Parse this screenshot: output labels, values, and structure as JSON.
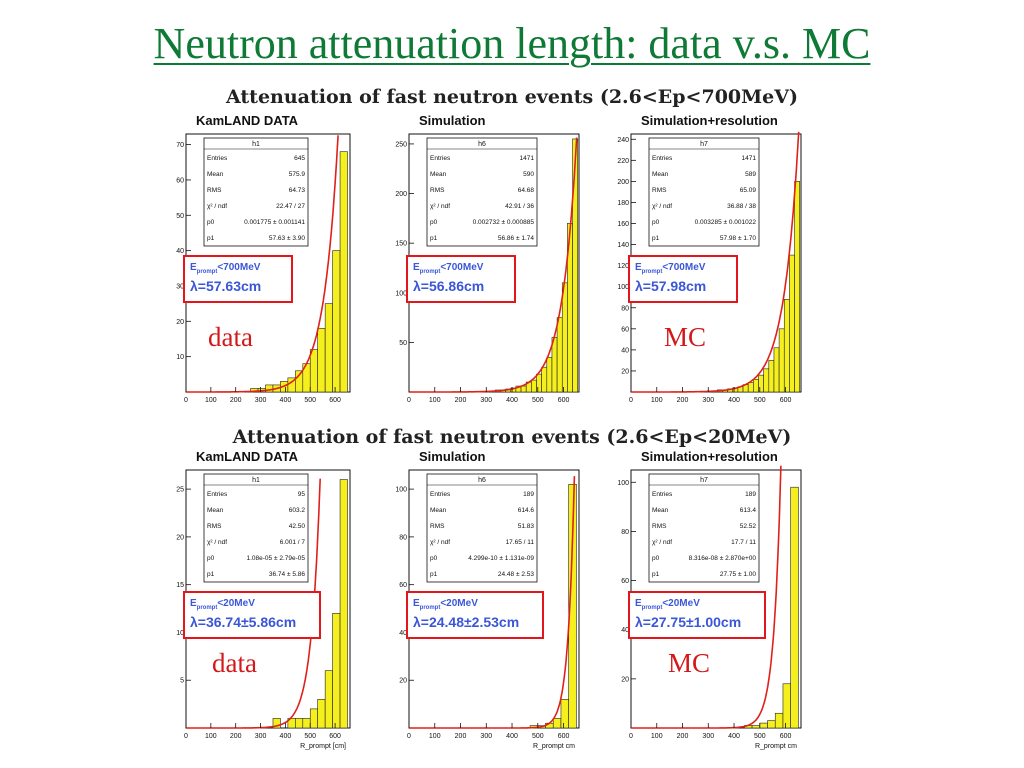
{
  "slide": {
    "title": "Neutron attenuation length: data v.s. MC",
    "section1_title": "Attenuation of fast neutron events (2.6<Ep<700MeV)",
    "section2_title": "Attenuation of fast neutron events (2.6<Ep<20MeV)",
    "labels": {
      "r1_left": "data",
      "r1_right": "MC",
      "r2_left": "data",
      "r2_right": "MC"
    }
  },
  "colors": {
    "title": "#0f7a36",
    "label": "#d21a1a",
    "fill": "#f5ef1e",
    "fit": "#e0201a",
    "fit_text": "#3b56d8",
    "box": "#e3161b"
  },
  "chart_data": [
    {
      "type": "bar",
      "title": "KamLAND DATA",
      "hist": "h1",
      "xticks": [
        "0",
        "100",
        "200",
        "300",
        "400",
        "500",
        "600"
      ],
      "xlim": [
        0,
        660
      ],
      "yticks": [
        "10",
        "20",
        "30",
        "40",
        "50",
        "60",
        "70"
      ],
      "ylim": [
        0,
        73
      ],
      "xlabel": "",
      "stats": [
        [
          "Entries",
          "645"
        ],
        [
          "Mean",
          "575.9"
        ],
        [
          "RMS",
          "64.73"
        ],
        [
          "χ² / ndf",
          "22.47 / 27"
        ],
        [
          "p0",
          "0.001775 ± 0.001141"
        ],
        [
          "p1",
          "57.63 ± 3.90"
        ]
      ],
      "fit_sub": "<700MeV",
      "fit_lambda": "λ=57.63cm",
      "bins_x": [
        5,
        35,
        65,
        95,
        125,
        155,
        185,
        215,
        245,
        275,
        305,
        335,
        365,
        395,
        425,
        455,
        485,
        515,
        545,
        575,
        605,
        635
      ],
      "bins_y": [
        0,
        0,
        0,
        0,
        0,
        0,
        0,
        0,
        0,
        1,
        1,
        2,
        2,
        3,
        4,
        6,
        8,
        12,
        18,
        25,
        40,
        68
      ],
      "fit": {
        "p0": 0.001775,
        "p1": 57.63
      }
    },
    {
      "type": "bar",
      "title": "Simulation",
      "hist": "h6",
      "xticks": [
        "0",
        "100",
        "200",
        "300",
        "400",
        "500",
        "600"
      ],
      "xlim": [
        0,
        660
      ],
      "yticks": [
        "50",
        "100",
        "150",
        "200",
        "250"
      ],
      "ylim": [
        0,
        260
      ],
      "xlabel": "",
      "stats": [
        [
          "Entries",
          "1471"
        ],
        [
          "Mean",
          "590"
        ],
        [
          "RMS",
          "64.68"
        ],
        [
          "χ² / ndf",
          "42.91 / 36"
        ],
        [
          "p0",
          "0.002732 ± 0.000885"
        ],
        [
          "p1",
          "56.86 ± 1.74"
        ]
      ],
      "fit_sub": "<700MeV",
      "fit_lambda": "λ=56.86cm",
      "bins_x": [
        5,
        25,
        45,
        65,
        85,
        105,
        125,
        145,
        165,
        185,
        205,
        225,
        245,
        265,
        285,
        305,
        325,
        345,
        365,
        385,
        405,
        425,
        445,
        465,
        485,
        505,
        525,
        545,
        565,
        585,
        605,
        625,
        645
      ],
      "bins_y": [
        0,
        0,
        0,
        0,
        0,
        0,
        0,
        0,
        0,
        0,
        0,
        0,
        0,
        0,
        0,
        0,
        1,
        2,
        2,
        3,
        4,
        6,
        6,
        10,
        12,
        18,
        25,
        35,
        55,
        75,
        110,
        170,
        255
      ],
      "fit": {
        "p0": 0.002732,
        "p1": 56.86
      }
    },
    {
      "type": "bar",
      "title": "Simulation+resolution",
      "hist": "h7",
      "xticks": [
        "0",
        "100",
        "200",
        "300",
        "400",
        "500",
        "600"
      ],
      "xlim": [
        0,
        660
      ],
      "yticks": [
        "20",
        "40",
        "60",
        "80",
        "100",
        "120",
        "140",
        "160",
        "180",
        "200",
        "220",
        "240"
      ],
      "ylim": [
        0,
        245
      ],
      "xlabel": "",
      "stats": [
        [
          "Entries",
          "1471"
        ],
        [
          "Mean",
          "589"
        ],
        [
          "RMS",
          "65.09"
        ],
        [
          "χ² / ndf",
          "36.88 / 38"
        ],
        [
          "p0",
          "0.003285 ± 0.001022"
        ],
        [
          "p1",
          "57.98 ± 1.70"
        ]
      ],
      "fit_sub": "<700MeV",
      "fit_lambda": "λ=57.98cm",
      "bins_x": [
        5,
        25,
        45,
        65,
        85,
        105,
        125,
        145,
        165,
        185,
        205,
        225,
        245,
        265,
        285,
        305,
        325,
        345,
        365,
        385,
        405,
        425,
        445,
        465,
        485,
        505,
        525,
        545,
        565,
        585,
        605,
        625,
        645
      ],
      "bins_y": [
        0,
        0,
        0,
        0,
        0,
        0,
        0,
        0,
        0,
        0,
        0,
        0,
        0,
        0,
        0,
        1,
        1,
        2,
        2,
        3,
        4,
        5,
        7,
        9,
        12,
        16,
        22,
        30,
        42,
        60,
        88,
        130,
        200
      ],
      "fit": {
        "p0": 0.003285,
        "p1": 57.98
      }
    },
    {
      "type": "bar",
      "title": "KamLAND DATA",
      "hist": "h1",
      "xticks": [
        "0",
        "100",
        "200",
        "300",
        "400",
        "500",
        "600"
      ],
      "xlim": [
        0,
        660
      ],
      "yticks": [
        "5",
        "10",
        "15",
        "20",
        "25"
      ],
      "ylim": [
        0,
        27
      ],
      "xlabel": "R_prompt [cm]",
      "stats": [
        [
          "Entries",
          "95"
        ],
        [
          "Mean",
          "603.2"
        ],
        [
          "RMS",
          "42.50"
        ],
        [
          "χ² / ndf",
          "6.001 / 7"
        ],
        [
          "p0",
          "1.08e-05 ± 2.79e-05"
        ],
        [
          "p1",
          "36.74 ± 5.86"
        ]
      ],
      "fit_sub": "<20MeV",
      "fit_lambda": "λ=36.74±5.86cm",
      "bins_x": [
        5,
        35,
        65,
        95,
        125,
        155,
        185,
        215,
        245,
        275,
        305,
        335,
        365,
        395,
        425,
        455,
        485,
        515,
        545,
        575,
        605,
        635
      ],
      "bins_y": [
        0,
        0,
        0,
        0,
        0,
        0,
        0,
        0,
        0,
        0,
        0,
        0,
        1,
        0,
        1,
        1,
        1,
        2,
        3,
        6,
        12,
        26
      ],
      "fit": {
        "p0": 1.08e-05,
        "p1": 36.74
      }
    },
    {
      "type": "bar",
      "title": "Simulation",
      "hist": "h6",
      "xticks": [
        "0",
        "100",
        "200",
        "300",
        "400",
        "500",
        "600"
      ],
      "xlim": [
        0,
        660
      ],
      "yticks": [
        "20",
        "40",
        "60",
        "80",
        "100"
      ],
      "ylim": [
        0,
        108
      ],
      "xlabel": "R_prompt cm",
      "stats": [
        [
          "Entries",
          "189"
        ],
        [
          "Mean",
          "614.6"
        ],
        [
          "RMS",
          "51.83"
        ],
        [
          "χ² / ndf",
          "17.65 / 11"
        ],
        [
          "p0",
          "4.299e-10 ± 1.131e-09"
        ],
        [
          "p1",
          "24.48 ± 2.53"
        ]
      ],
      "fit_sub": "<20MeV",
      "fit_lambda": "λ=24.48±2.53cm",
      "bins_x": [
        5,
        35,
        65,
        95,
        125,
        155,
        185,
        215,
        245,
        275,
        305,
        335,
        365,
        395,
        425,
        455,
        485,
        515,
        545,
        575,
        605,
        635
      ],
      "bins_y": [
        0,
        0,
        0,
        0,
        0,
        0,
        0,
        0,
        0,
        0,
        0,
        0,
        0,
        0,
        0,
        0,
        1,
        1,
        2,
        4,
        12,
        102
      ],
      "fit": {
        "p0": 4.299e-10,
        "p1": 24.48
      }
    },
    {
      "type": "bar",
      "title": "Simulation+resolution",
      "hist": "h7",
      "xticks": [
        "0",
        "100",
        "200",
        "300",
        "400",
        "500",
        "600"
      ],
      "xlim": [
        0,
        660
      ],
      "yticks": [
        "20",
        "40",
        "60",
        "80",
        "100"
      ],
      "ylim": [
        0,
        105
      ],
      "xlabel": "R_prompt cm",
      "stats": [
        [
          "Entries",
          "189"
        ],
        [
          "Mean",
          "613.4"
        ],
        [
          "RMS",
          "52.52"
        ],
        [
          "χ² / ndf",
          "17.7 / 11"
        ],
        [
          "p0",
          "8.316e-08 ± 2.870e+00"
        ],
        [
          "p1",
          "27.75 ± 1.00"
        ]
      ],
      "fit_sub": "<20MeV",
      "fit_lambda": "λ=27.75±1.00cm",
      "bins_x": [
        5,
        35,
        65,
        95,
        125,
        155,
        185,
        215,
        245,
        275,
        305,
        335,
        365,
        395,
        425,
        455,
        485,
        515,
        545,
        575,
        605,
        635
      ],
      "bins_y": [
        0,
        0,
        0,
        0,
        0,
        0,
        0,
        0,
        0,
        0,
        0,
        0,
        0,
        0,
        0,
        1,
        1,
        2,
        3,
        6,
        18,
        98
      ],
      "fit": {
        "p0": 8.316e-08,
        "p1": 27.75
      }
    }
  ]
}
